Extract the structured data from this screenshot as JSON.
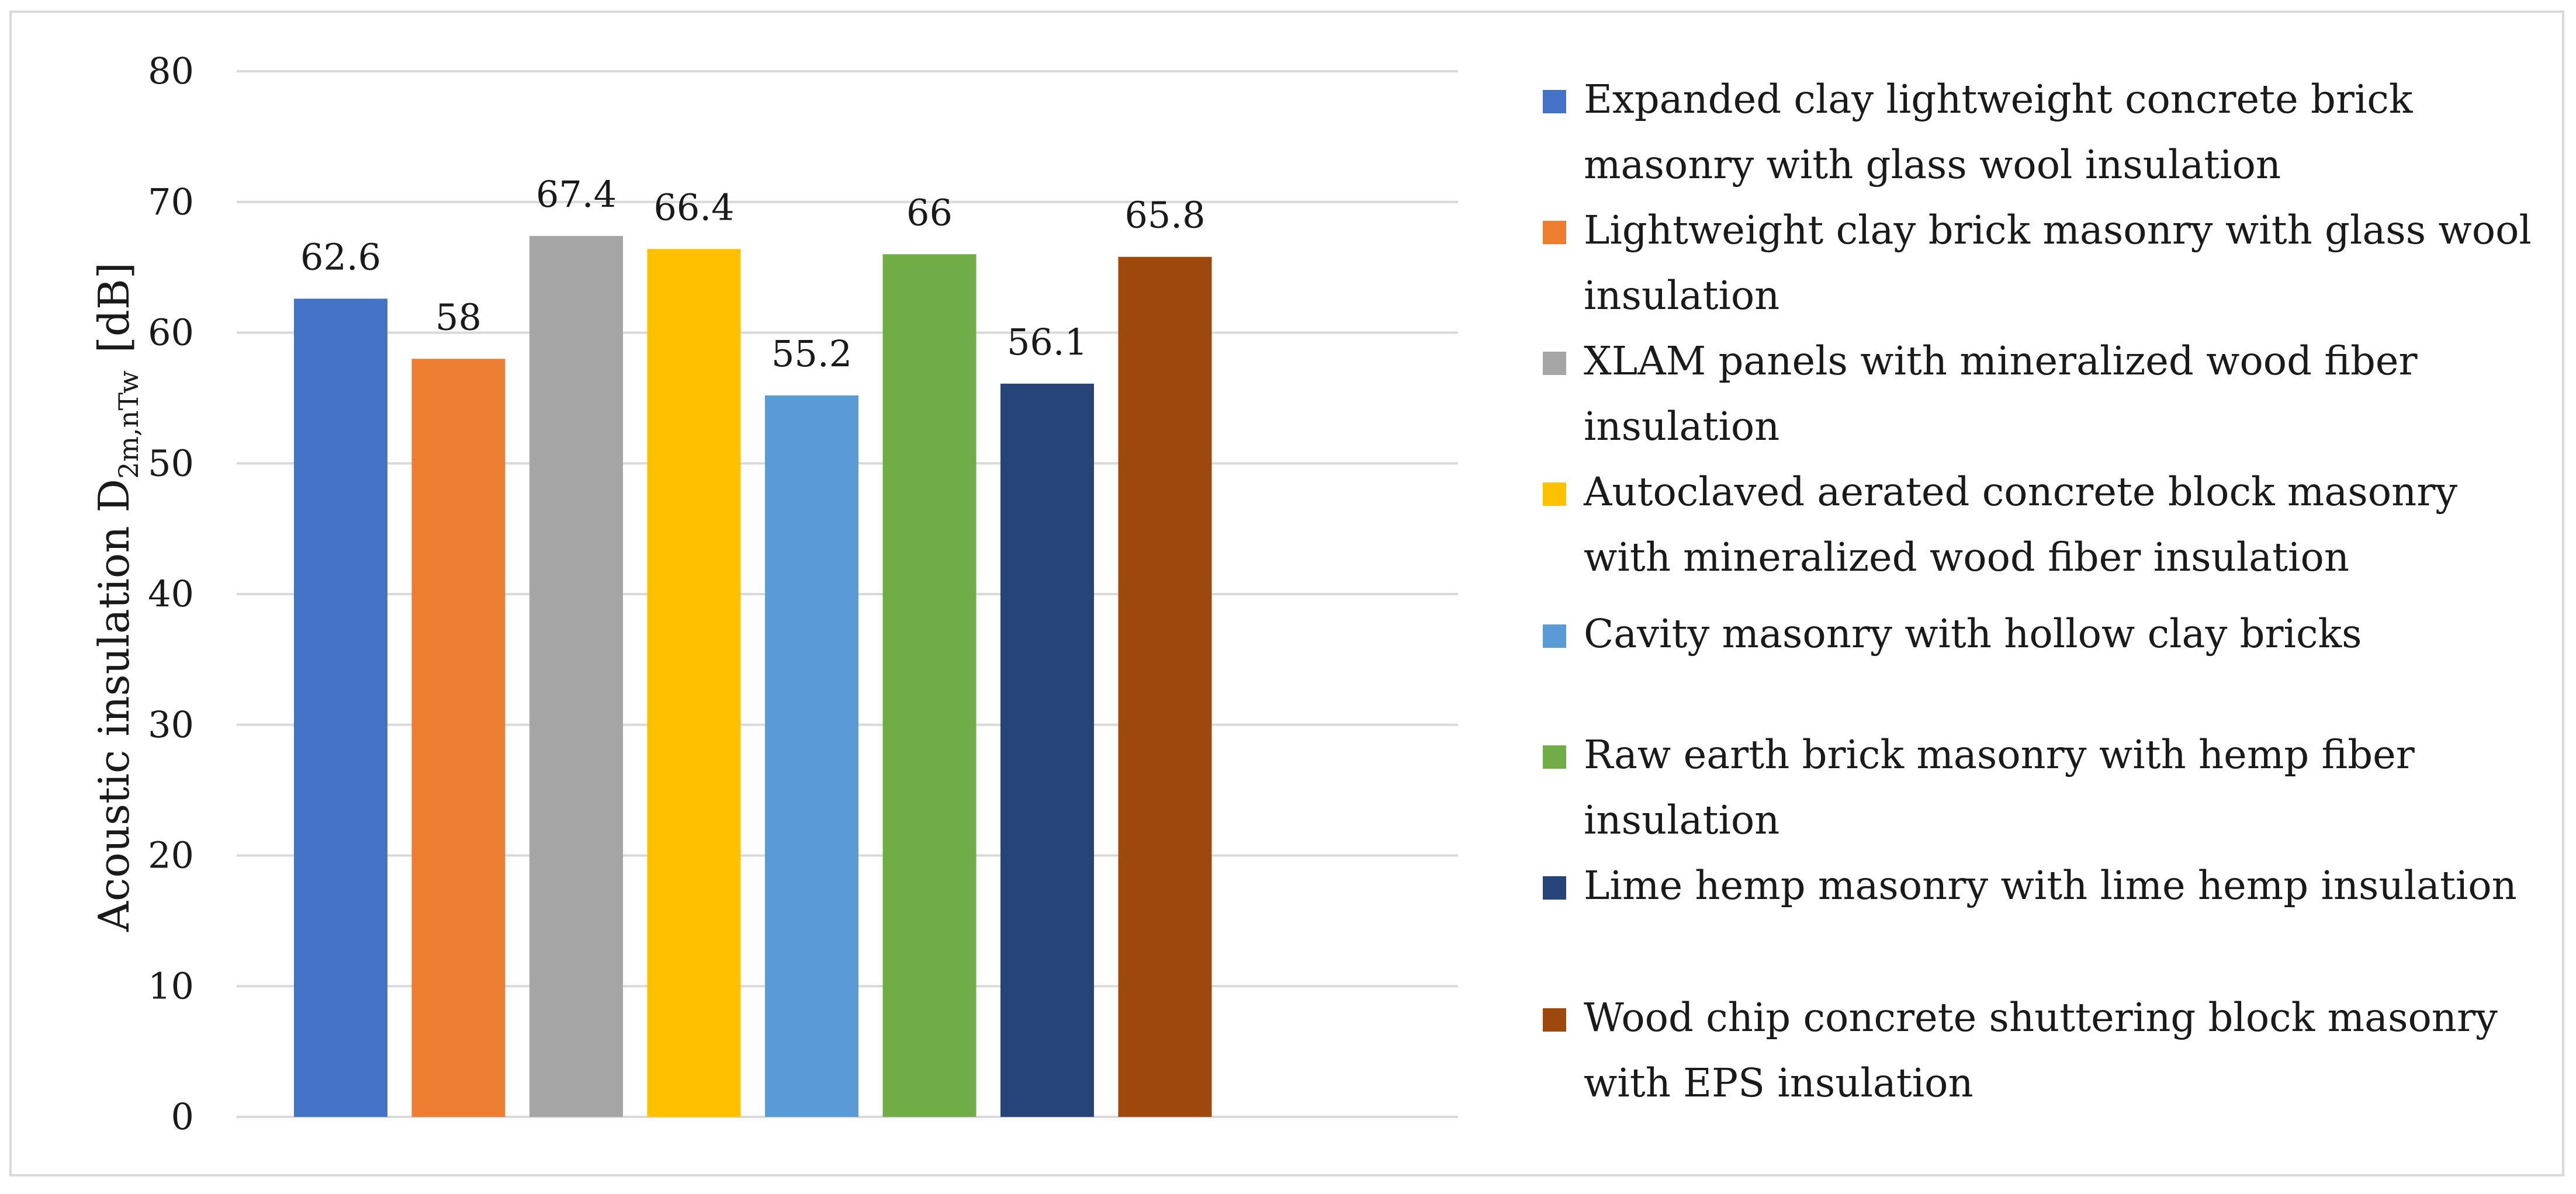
{
  "chart_data": {
    "type": "bar",
    "title": "",
    "xlabel": "",
    "ylabel": {
      "main": "Acoustic insulation D",
      "subscript": "2m,nTw",
      "unit": "[dB]"
    },
    "ylim": [
      0,
      80
    ],
    "yticks": [
      0,
      10,
      20,
      30,
      40,
      50,
      60,
      70,
      80
    ],
    "grid": true,
    "legend_position": "right",
    "series": [
      {
        "name": "Expanded clay lightweight concrete brick masonry with glass wool insulation",
        "value": 62.6,
        "label": "62.6",
        "color": "#4472C4"
      },
      {
        "name": "Lightweight clay brick masonry with glass wool insulation",
        "value": 58,
        "label": "58",
        "color": "#ED7D31"
      },
      {
        "name": "XLAM panels with mineralized wood fiber insulation",
        "value": 67.4,
        "label": "67.4",
        "color": "#A5A5A5"
      },
      {
        "name": "Autoclaved aerated concrete block masonry with mineralized wood fiber insulation",
        "value": 66.4,
        "label": "66.4",
        "color": "#FFC000"
      },
      {
        "name": "Cavity masonry with hollow clay bricks",
        "value": 55.2,
        "label": "55.2",
        "color": "#5B9BD5"
      },
      {
        "name": "Raw earth brick masonry with hemp fiber insulation",
        "value": 66,
        "label": "66",
        "color": "#70AD47"
      },
      {
        "name": "Lime hemp masonry with lime hemp insulation",
        "value": 56.1,
        "label": "56.1",
        "color": "#264478"
      },
      {
        "name": "Wood chip concrete shuttering block masonry with EPS insulation",
        "value": 65.8,
        "label": "65.8",
        "color": "#9E480E"
      }
    ]
  }
}
